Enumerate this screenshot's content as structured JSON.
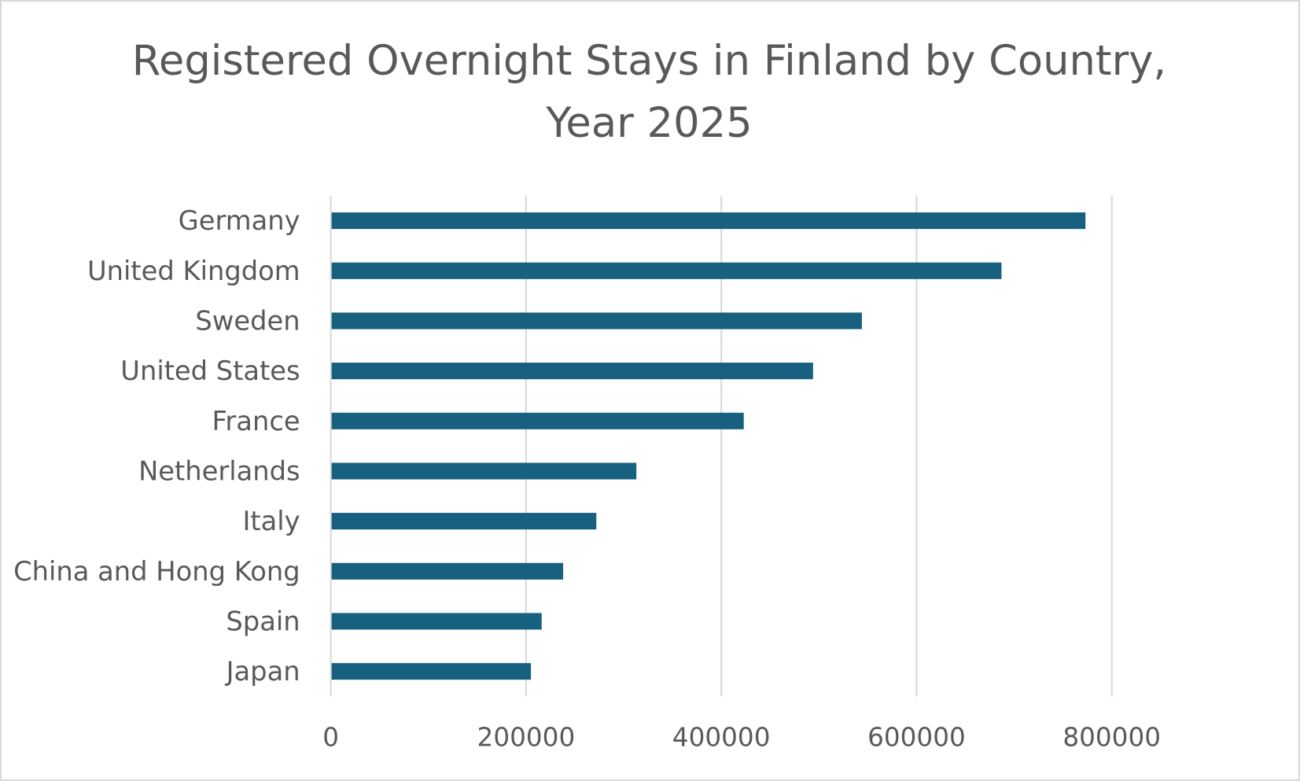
{
  "chart_data": {
    "type": "bar",
    "orientation": "horizontal",
    "title": "Registered Overnight Stays in Finland by Country, Year 2025",
    "title_lines": [
      "Registered Overnight Stays in Finland by Country,",
      "Year 2025"
    ],
    "xlabel": "",
    "ylabel": "",
    "categories": [
      "Germany",
      "United Kingdom",
      "Sweden",
      "United States",
      "France",
      "Netherlands",
      "Italy",
      "China and Hong Kong",
      "Spain",
      "Japan"
    ],
    "values": [
      773000,
      687000,
      544000,
      494000,
      423000,
      313000,
      272000,
      238000,
      216000,
      205000
    ],
    "xlim": [
      0,
      800000
    ],
    "x_ticks": [
      "0",
      "200000",
      "400000",
      "600000",
      "800000"
    ],
    "grid": "vertical",
    "legend": "none",
    "bar_color": "#17607F",
    "grid_color": "#D9D9D9"
  }
}
